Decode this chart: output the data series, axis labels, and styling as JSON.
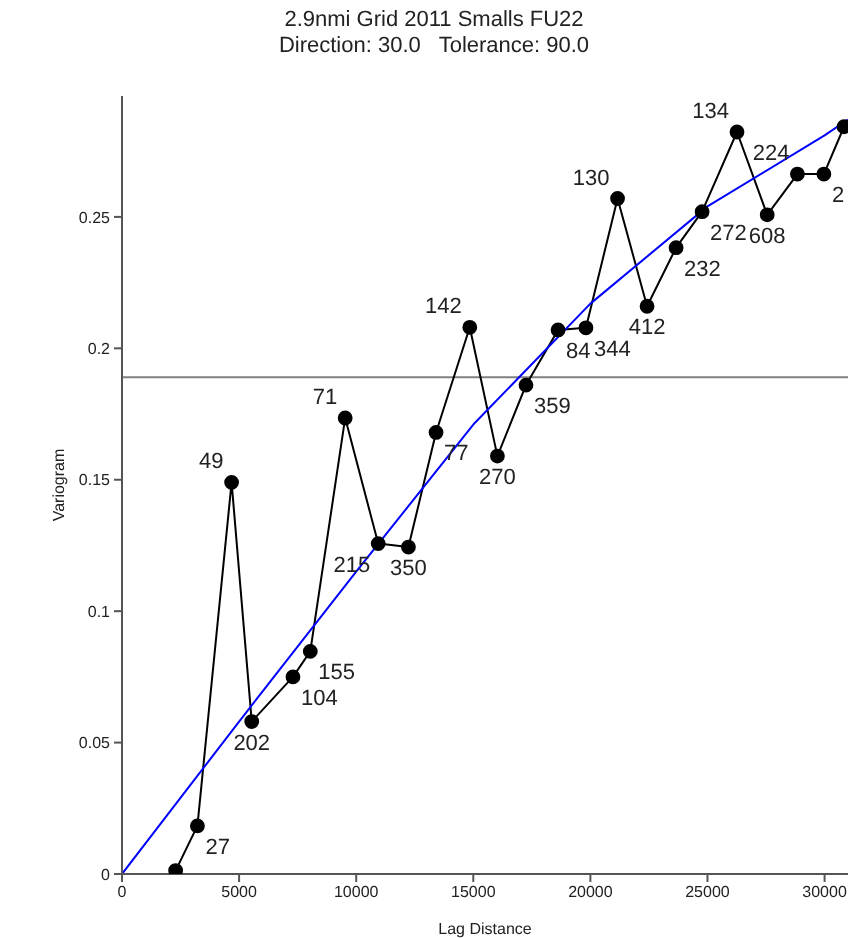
{
  "chart_data": {
    "type": "line",
    "title": "2.9nmi Grid 2011 Smalls FU22",
    "subtitle": "Direction: 30.0   Tolerance: 90.0",
    "xlabel": "Lag Distance",
    "ylabel": "Variogram",
    "xlim": [
      0,
      31000
    ],
    "xticks": [
      0,
      5000,
      10000,
      15000,
      20000,
      25000,
      30000
    ],
    "ylim": [
      0,
      0.296
    ],
    "yticks": [
      0,
      0.05,
      0.1,
      0.15,
      0.2,
      0.25
    ],
    "grid": false,
    "ref_lines": [
      {
        "axis": "y",
        "value": 0.189,
        "color": "#808080"
      }
    ],
    "series": [
      {
        "color": "#000000",
        "marker": "circle",
        "x": [
          2290,
          3220,
          4680,
          5540,
          7300,
          8040,
          9530,
          10940,
          12230,
          13410,
          14850,
          16030,
          17250,
          18620,
          19810,
          21160,
          22420,
          23660,
          24770,
          26260,
          27550,
          28840,
          29970,
          30830
        ],
        "values": [
          0.0013,
          0.0183,
          0.149,
          0.058,
          0.075,
          0.0847,
          0.1735,
          0.1257,
          0.1244,
          0.168,
          0.208,
          0.159,
          0.186,
          0.207,
          0.2078,
          0.257,
          0.216,
          0.2383,
          0.252,
          0.2823,
          0.2508,
          0.2663,
          0.2663,
          0.2843
        ]
      },
      {
        "color": "#0000ff",
        "marker": "none",
        "x": [
          0,
          5000,
          10000,
          15000,
          20000,
          25000,
          30000,
          31000
        ],
        "values": [
          0,
          0.058,
          0.115,
          0.171,
          0.217,
          0.254,
          0.281,
          0.287
        ]
      }
    ],
    "annotations": [
      {
        "text": "27",
        "x": 3220,
        "y": 0.0183
      },
      {
        "text": "49",
        "x": 4680,
        "y": 0.149
      },
      {
        "text": "202",
        "x": 5540,
        "y": 0.058
      },
      {
        "text": "104",
        "x": 7300,
        "y": 0.075
      },
      {
        "text": "155",
        "x": 8040,
        "y": 0.0847
      },
      {
        "text": "71",
        "x": 9530,
        "y": 0.1735
      },
      {
        "text": "215",
        "x": 10940,
        "y": 0.1257
      },
      {
        "text": "350",
        "x": 12230,
        "y": 0.1244
      },
      {
        "text": "77",
        "x": 13410,
        "y": 0.168
      },
      {
        "text": "142",
        "x": 14850,
        "y": 0.208
      },
      {
        "text": "270",
        "x": 16030,
        "y": 0.159
      },
      {
        "text": "359",
        "x": 17250,
        "y": 0.186
      },
      {
        "text": "84",
        "x": 18620,
        "y": 0.207
      },
      {
        "text": "344",
        "x": 19810,
        "y": 0.2078
      },
      {
        "text": "130",
        "x": 21160,
        "y": 0.257
      },
      {
        "text": "412",
        "x": 22420,
        "y": 0.216
      },
      {
        "text": "232",
        "x": 23660,
        "y": 0.2383
      },
      {
        "text": "272",
        "x": 24770,
        "y": 0.252
      },
      {
        "text": "134",
        "x": 26260,
        "y": 0.2823
      },
      {
        "text": "608",
        "x": 27550,
        "y": 0.2508
      },
      {
        "text": "224",
        "x": 28840,
        "y": 0.2663
      },
      {
        "text": "2",
        "x": 29970,
        "y": 0.2663
      }
    ]
  }
}
